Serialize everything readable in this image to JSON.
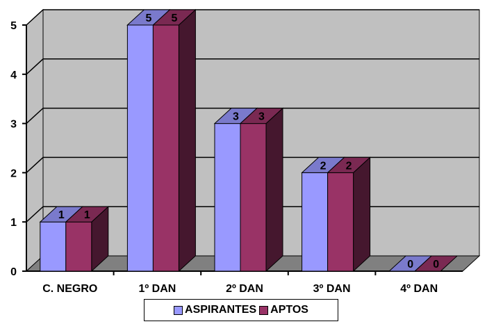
{
  "chart_data": {
    "type": "bar",
    "style": "3d-clustered-column",
    "categories": [
      "C. NEGRO",
      "1º DAN",
      "2º DAN",
      "3º DAN",
      "4º DAN"
    ],
    "series": [
      {
        "name": "ASPIRANTES",
        "values": [
          1,
          5,
          3,
          2,
          0
        ],
        "color": "#9999ff"
      },
      {
        "name": "APTOS",
        "values": [
          1,
          5,
          3,
          2,
          0
        ],
        "color": "#993366"
      }
    ],
    "ylim": [
      0,
      5
    ],
    "yticks": [
      "0",
      "1",
      "2",
      "3",
      "4",
      "5"
    ],
    "grid": true,
    "legend": "bottom",
    "colors": {
      "wall": "#c0c0c0",
      "floor": "#808080",
      "grid": "#000000"
    }
  }
}
